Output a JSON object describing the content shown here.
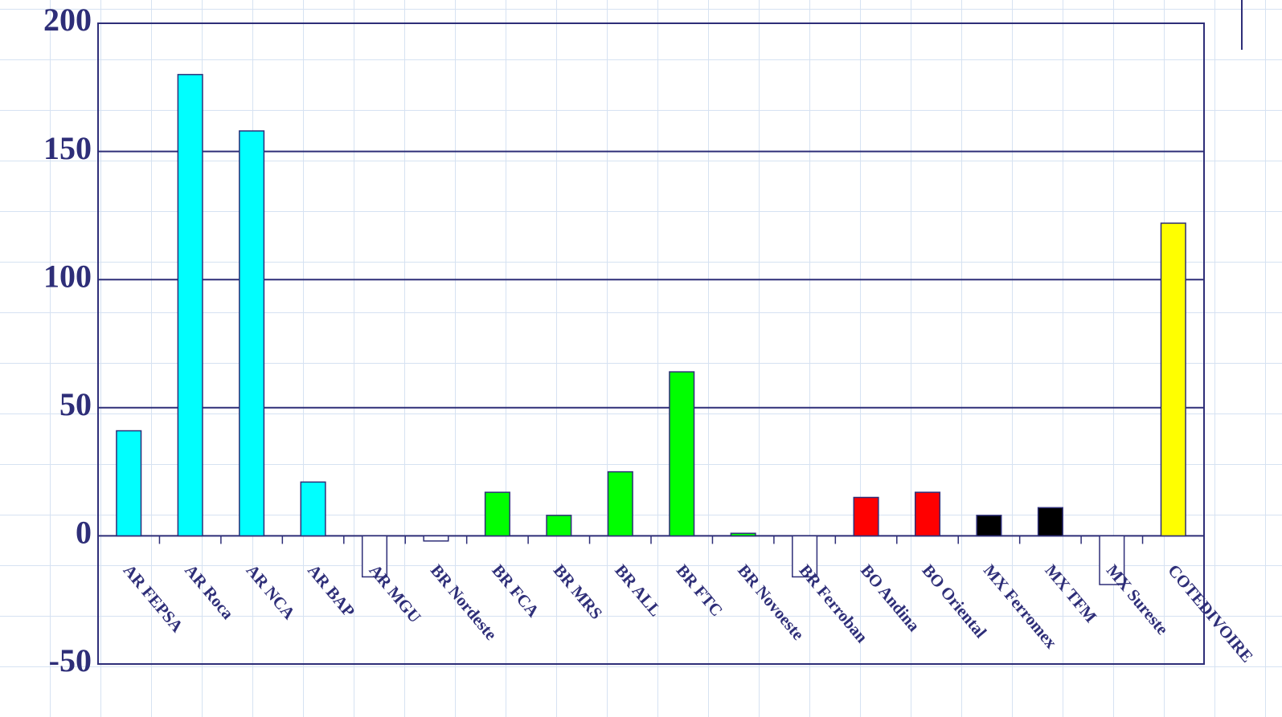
{
  "chart_data": {
    "type": "bar",
    "categories": [
      "AR FEPSA",
      "AR Roca",
      "AR NCA",
      "AR BAP",
      "AR MGU",
      "BR Nordeste",
      "BR FCA",
      "BR MRS",
      "BR ALL",
      "BR FTC",
      "BR Novoeste",
      "BR Ferroban",
      "BO Andina",
      "BO Oriental",
      "MX Ferromex",
      "MX TFM",
      "MX Sureste",
      "COTEDIVOIRE"
    ],
    "values": [
      41,
      180,
      158,
      21,
      -16,
      -2,
      17,
      8,
      25,
      64,
      1,
      -16,
      15,
      17,
      8,
      11,
      -19,
      122
    ],
    "colors": [
      "#00ffff",
      "#00ffff",
      "#00ffff",
      "#00ffff",
      "#ffffff",
      "#ffffff",
      "#00ff00",
      "#00ff00",
      "#00ff00",
      "#00ff00",
      "#00ff00",
      "#ffffff",
      "#ff0000",
      "#ff0000",
      "#000000",
      "#000000",
      "#ffffff",
      "#ffff00"
    ],
    "ylim": [
      -50,
      200
    ],
    "yticks": [
      -50,
      0,
      50,
      100,
      150,
      200
    ],
    "grid": true
  }
}
